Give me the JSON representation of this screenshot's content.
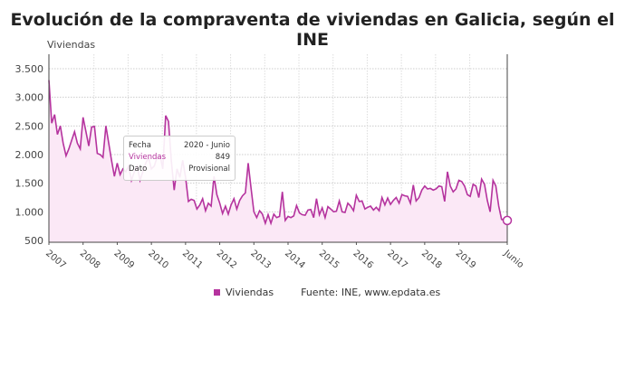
{
  "chart_data": {
    "type": "area",
    "title": "Evolución de la compraventa de viviendas en Galicia, según el INE",
    "ylabel": "Viviendas",
    "ylim": [
      400,
      3600
    ],
    "yticks": [
      500,
      1000,
      1500,
      2000,
      2500,
      3000,
      3500
    ],
    "ytick_labels": [
      "500",
      "1.000",
      "1.500",
      "2.000",
      "2.500",
      "3.000",
      "3.500"
    ],
    "xtick_labels": [
      "2007",
      "2008",
      "2009",
      "2010",
      "2011",
      "2012",
      "2013",
      "2014",
      "2015",
      "2016",
      "2017",
      "2018",
      "2019",
      "Junio"
    ],
    "start": "2007-01",
    "end": "2020-06",
    "grid": true,
    "series": [
      {
        "name": "Viviendas",
        "color": "#b5339e",
        "values": [
          3300,
          2550,
          2700,
          2350,
          2500,
          2200,
          1980,
          2100,
          2250,
          2400,
          2200,
          2100,
          2650,
          2400,
          2150,
          2480,
          2490,
          2020,
          2000,
          1950,
          2500,
          2200,
          1900,
          1620,
          1850,
          1650,
          1750,
          1700,
          1800,
          1550,
          1700,
          1800,
          1550,
          1700,
          1850,
          1950,
          1750,
          1800,
          1950,
          2000,
          1750,
          2680,
          2580,
          1900,
          1380,
          1750,
          1600,
          1900,
          1600,
          1180,
          1220,
          1200,
          1050,
          1120,
          1230,
          1020,
          1150,
          1100,
          1620,
          1300,
          1150,
          970,
          1100,
          960,
          1120,
          1230,
          1050,
          1200,
          1280,
          1330,
          1850,
          1420,
          1000,
          900,
          1020,
          960,
          800,
          950,
          800,
          960,
          900,
          920,
          1350,
          850,
          920,
          900,
          930,
          1110,
          980,
          950,
          940,
          1030,
          1040,
          900,
          1230,
          950,
          1070,
          900,
          1090,
          1050,
          1000,
          1010,
          1190,
          1000,
          990,
          1150,
          1100,
          1020,
          1290,
          1180,
          1190,
          1050,
          1080,
          1100,
          1030,
          1080,
          1020,
          1250,
          1120,
          1240,
          1130,
          1200,
          1250,
          1150,
          1300,
          1280,
          1270,
          1150,
          1470,
          1190,
          1250,
          1380,
          1450,
          1400,
          1410,
          1380,
          1400,
          1450,
          1440,
          1180,
          1700,
          1450,
          1350,
          1400,
          1550,
          1530,
          1450,
          1300,
          1270,
          1480,
          1450,
          1250,
          1570,
          1480,
          1200,
          1000,
          1550,
          1450,
          1100,
          870,
          850,
          849
        ]
      }
    ],
    "legend": "bottom",
    "source": "Fuente: INE, www.epdata.es"
  },
  "tooltip": {
    "fecha_label": "Fecha",
    "fecha": "2020 - Junio",
    "viv_label": "Viviendas",
    "viv": "849",
    "dato_label": "Dato",
    "dato": "Provisional"
  }
}
